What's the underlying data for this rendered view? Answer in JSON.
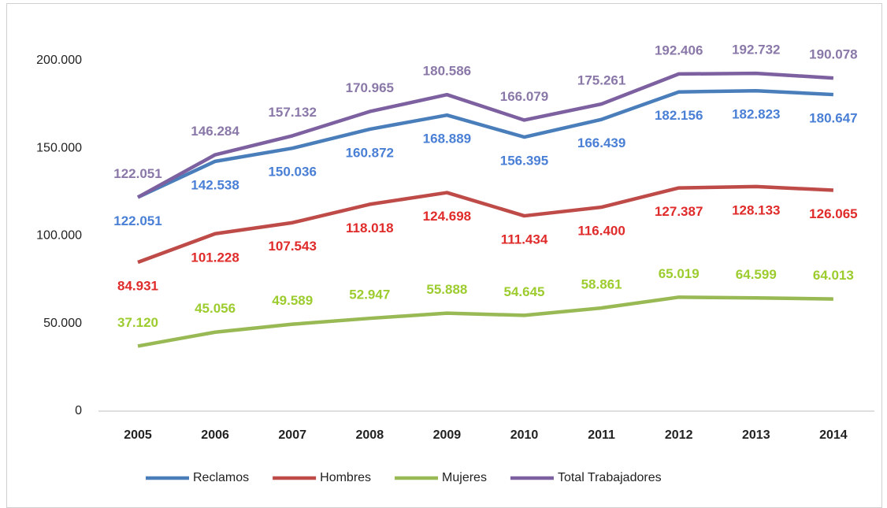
{
  "chart_data": {
    "type": "line",
    "categories": [
      "2005",
      "2006",
      "2007",
      "2008",
      "2009",
      "2010",
      "2011",
      "2012",
      "2013",
      "2014"
    ],
    "series": [
      {
        "name": "Reclamos",
        "color": "#4a7ebb",
        "label_color": "#4a7fd6",
        "label_position": "below",
        "values": [
          122051,
          142538,
          150036,
          160872,
          168889,
          156395,
          166439,
          182156,
          182823,
          180647
        ],
        "value_labels": [
          "122.051",
          "142.538",
          "150.036",
          "160.872",
          "168.889",
          "156.395",
          "166.439",
          "182.156",
          "182.823",
          "180.647"
        ]
      },
      {
        "name": "Hombres",
        "color": "#be4b48",
        "label_color": "#e02b2b",
        "label_position": "below",
        "values": [
          84931,
          101228,
          107543,
          118018,
          124698,
          111434,
          116400,
          127387,
          128133,
          126065
        ],
        "value_labels": [
          "84.931",
          "101.228",
          "107.543",
          "118.018",
          "124.698",
          "111.434",
          "116.400",
          "127.387",
          "128.133",
          "126.065"
        ]
      },
      {
        "name": "Mujeres",
        "color": "#98b954",
        "label_color": "#9ccc2e",
        "label_position": "above",
        "values": [
          37120,
          45056,
          49589,
          52947,
          55888,
          54645,
          58861,
          65019,
          64599,
          64013
        ],
        "value_labels": [
          "37.120",
          "45.056",
          "49.589",
          "52.947",
          "55.888",
          "54.645",
          "58.861",
          "65.019",
          "64.599",
          "64.013"
        ]
      },
      {
        "name": "Total Trabajadores",
        "color": "#7d60a0",
        "label_color": "#8a78a8",
        "label_position": "above",
        "values": [
          122051,
          146284,
          157132,
          170965,
          180586,
          166079,
          175261,
          192406,
          192732,
          190078
        ],
        "value_labels": [
          "122.051",
          "146.284",
          "157.132",
          "170.965",
          "180.586",
          "166.079",
          "175.261",
          "192.406",
          "192.732",
          "190.078"
        ]
      }
    ],
    "ylim": [
      0,
      200000
    ],
    "yticks": [
      0,
      {
        "value": 50000,
        "label": "50.000"
      },
      {
        "value": 100000,
        "label": "100.000"
      },
      {
        "value": 150000,
        "label": "150.000"
      },
      {
        "value": 200000,
        "label": "200.000"
      }
    ],
    "legend": "bottom"
  }
}
